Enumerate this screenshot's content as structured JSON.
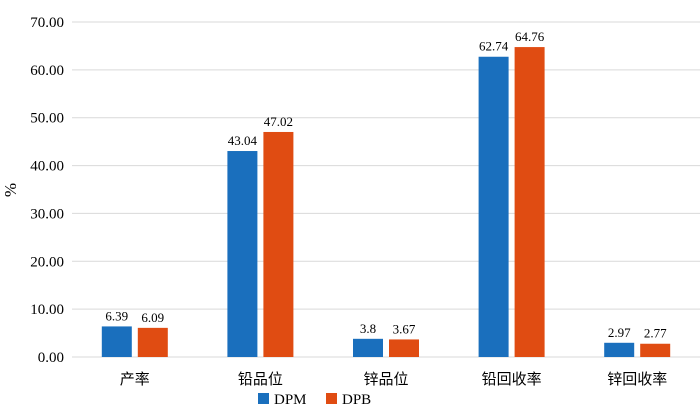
{
  "chart_data": {
    "type": "bar",
    "categories": [
      "产率",
      "铅品位",
      "锌品位",
      "铅回收率",
      "锌回收率"
    ],
    "series": [
      {
        "name": "DPM",
        "color": "#1a6fbd",
        "values": [
          6.39,
          43.04,
          3.8,
          62.74,
          2.97
        ]
      },
      {
        "name": "DPB",
        "color": "#e04c12",
        "values": [
          6.09,
          47.02,
          3.67,
          64.76,
          2.77
        ]
      }
    ],
    "value_labels": [
      [
        "6.39",
        "43.04",
        "3.8",
        "62.74",
        "2.97"
      ],
      [
        "6.09",
        "47.02",
        "3.67",
        "64.76",
        "2.77"
      ]
    ],
    "ylabel": "%",
    "ylim": [
      0,
      70
    ],
    "yticks": [
      "0.00",
      "10.00",
      "20.00",
      "30.00",
      "40.00",
      "50.00",
      "60.00",
      "70.00"
    ],
    "ytick_values": [
      0,
      10,
      20,
      30,
      40,
      50,
      60,
      70
    ],
    "grid": true,
    "legend_position": "bottom"
  }
}
